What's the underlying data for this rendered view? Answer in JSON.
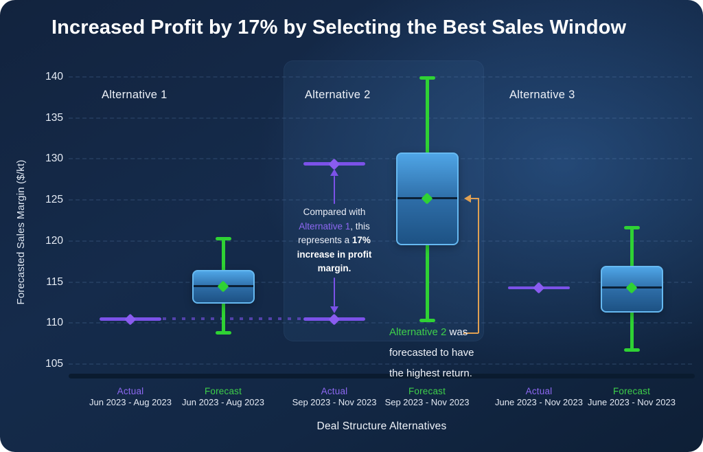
{
  "chart_data": {
    "type": "boxplot",
    "title": "Increased Profit by 17% by Selecting the Best Sales Window",
    "xlabel": "Deal Structure Alternatives",
    "ylabel": "Forecasted Sales Margin ($/kt)",
    "ylim": [
      103.5,
      141.5
    ],
    "yticks": [
      105,
      110,
      115,
      120,
      125,
      130,
      135,
      140
    ],
    "grid": "dashed horizontal gridlines at each tick",
    "legend_position": "none",
    "groups": [
      {
        "name": "Alternative 1",
        "highlighted": false,
        "series": [
          {
            "kind": "actual-line",
            "label": "Actual",
            "period": "Jun 2023 - Aug 2023",
            "value": 110.5
          },
          {
            "kind": "box",
            "label": "Forecast",
            "period": "Jun 2023 - Aug 2023",
            "whisker_low": 108.8,
            "q1": 112.4,
            "median": 114.5,
            "q3": 116.5,
            "whisker_high": 120.3
          }
        ]
      },
      {
        "name": "Alternative 2",
        "highlighted": true,
        "series": [
          {
            "kind": "actual-line",
            "label": "Actual",
            "period": "Sep 2023 - Nov 2023",
            "value": 129.4,
            "reference_value": 110.5
          },
          {
            "kind": "box",
            "label": "Forecast",
            "period": "Sep 2023 - Nov 2023",
            "whisker_low": 110.3,
            "q1": 119.5,
            "median": 125.2,
            "q3": 130.8,
            "whisker_high": 139.9
          }
        ]
      },
      {
        "name": "Alternative 3",
        "highlighted": false,
        "series": [
          {
            "kind": "actual-line",
            "label": "Actual",
            "period": "June 2023 - Nov 2023",
            "value": 114.3
          },
          {
            "kind": "box",
            "label": "Forecast",
            "period": "June 2023 - Nov 2023",
            "whisker_low": 106.7,
            "q1": 111.3,
            "median": 114.3,
            "q3": 117.0,
            "whisker_high": 121.6
          }
        ]
      }
    ],
    "connector": {
      "style": "dotted",
      "value": 110.5,
      "from": "alternative-1-actual",
      "to": "alternative-2-actual"
    },
    "annotations": [
      {
        "id": "increase",
        "column": "alternative-2-actual",
        "from_value": 110.5,
        "to_value": 129.4,
        "lines": [
          [
            {
              "t": "Compared with"
            }
          ],
          [
            {
              "t": "Alternative 1",
              "s": "purple"
            },
            {
              "t": ", this"
            }
          ],
          [
            {
              "t": "represents a "
            },
            {
              "t": "17%",
              "s": "bold"
            }
          ],
          [
            {
              "t": "increase in profit",
              "s": "bold"
            }
          ],
          [
            {
              "t": "margin.",
              "s": "bold"
            }
          ]
        ]
      },
      {
        "id": "highest-return",
        "points_to": "alternative-2-forecast-median",
        "lines": [
          [
            {
              "t": "Alternative 2",
              "s": "green"
            },
            {
              "t": " was"
            }
          ],
          [
            {
              "t": "forecasted to have"
            }
          ],
          [
            {
              "t": "the highest return."
            }
          ]
        ]
      }
    ],
    "colors": {
      "purple_line": "#7b52e8",
      "purple_diamond": "#8a5cf0",
      "purple_text": "#8d68f2",
      "dotted_connector": "#5c46bb",
      "green_line": "#2fd234",
      "green_text": "#3ecf4a",
      "orange": "#e0a052",
      "box_border": "#66b9f1",
      "box_top": "#4fa5e6",
      "box_mid": "#2d6ca6",
      "box_bottom": "#1d5284",
      "median": "#0b2036",
      "axis_band": "#0a1b2f",
      "panel_fill": "rgba(58,98,150,0.16)",
      "tick_text": "#e6ecf5"
    }
  }
}
